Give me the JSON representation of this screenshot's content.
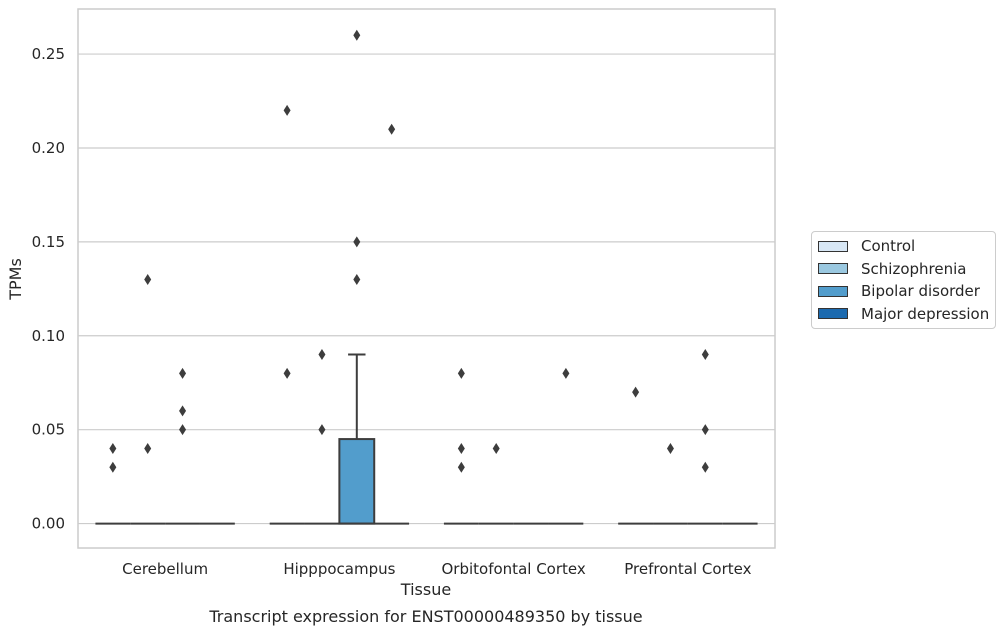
{
  "chart_data": {
    "type": "box",
    "caption": "Transcript expression for ENST00000489350 by tissue",
    "xlabel": "Tissue",
    "ylabel": "TPMs",
    "ylim": [
      -0.013,
      0.274
    ],
    "yticks": [
      0.0,
      0.05,
      0.1,
      0.15,
      0.2,
      0.25
    ],
    "ytick_labels": [
      "0.00",
      "0.05",
      "0.10",
      "0.15",
      "0.20",
      "0.25"
    ],
    "grid": "horizontal",
    "legend_position": "right",
    "categories": [
      "Cerebellum",
      "Hipppocampus",
      "Orbitofontal Cortex",
      "Prefrontal Cortex"
    ],
    "series": [
      {
        "name": "Control",
        "color": "#d8e7f5"
      },
      {
        "name": "Schizophrenia",
        "color": "#9ac8e0"
      },
      {
        "name": "Bipolar disorder",
        "color": "#529dcc"
      },
      {
        "name": "Major depression",
        "color": "#1c6aaf"
      }
    ],
    "boxes": [
      {
        "category": "Cerebellum",
        "series": "Control",
        "q1": 0,
        "median": 0,
        "q3": 0,
        "whisker_low": 0,
        "whisker_high": 0,
        "outliers": [
          0.04,
          0.03
        ]
      },
      {
        "category": "Cerebellum",
        "series": "Schizophrenia",
        "q1": 0,
        "median": 0,
        "q3": 0,
        "whisker_low": 0,
        "whisker_high": 0,
        "outliers": [
          0.13,
          0.04
        ]
      },
      {
        "category": "Cerebellum",
        "series": "Bipolar disorder",
        "q1": 0,
        "median": 0,
        "q3": 0,
        "whisker_low": 0,
        "whisker_high": 0,
        "outliers": [
          0.08,
          0.06,
          0.05
        ]
      },
      {
        "category": "Cerebellum",
        "series": "Major depression",
        "q1": 0,
        "median": 0,
        "q3": 0,
        "whisker_low": 0,
        "whisker_high": 0,
        "outliers": []
      },
      {
        "category": "Hipppocampus",
        "series": "Control",
        "q1": 0,
        "median": 0,
        "q3": 0,
        "whisker_low": 0,
        "whisker_high": 0,
        "outliers": [
          0.22,
          0.08
        ]
      },
      {
        "category": "Hipppocampus",
        "series": "Schizophrenia",
        "q1": 0,
        "median": 0,
        "q3": 0,
        "whisker_low": 0,
        "whisker_high": 0,
        "outliers": [
          0.09,
          0.05
        ]
      },
      {
        "category": "Hipppocampus",
        "series": "Bipolar disorder",
        "q1": 0,
        "median": 0,
        "q3": 0.045,
        "whisker_low": 0,
        "whisker_high": 0.09,
        "outliers": [
          0.26,
          0.15,
          0.13
        ]
      },
      {
        "category": "Hipppocampus",
        "series": "Major depression",
        "q1": 0,
        "median": 0,
        "q3": 0,
        "whisker_low": 0,
        "whisker_high": 0,
        "outliers": [
          0.21
        ]
      },
      {
        "category": "Orbitofontal Cortex",
        "series": "Control",
        "q1": 0,
        "median": 0,
        "q3": 0,
        "whisker_low": 0,
        "whisker_high": 0,
        "outliers": [
          0.08,
          0.04,
          0.03
        ]
      },
      {
        "category": "Orbitofontal Cortex",
        "series": "Schizophrenia",
        "q1": 0,
        "median": 0,
        "q3": 0,
        "whisker_low": 0,
        "whisker_high": 0,
        "outliers": [
          0.04
        ]
      },
      {
        "category": "Orbitofontal Cortex",
        "series": "Bipolar disorder",
        "q1": 0,
        "median": 0,
        "q3": 0,
        "whisker_low": 0,
        "whisker_high": 0,
        "outliers": []
      },
      {
        "category": "Orbitofontal Cortex",
        "series": "Major depression",
        "q1": 0,
        "median": 0,
        "q3": 0,
        "whisker_low": 0,
        "whisker_high": 0,
        "outliers": [
          0.08
        ]
      },
      {
        "category": "Prefrontal Cortex",
        "series": "Control",
        "q1": 0,
        "median": 0,
        "q3": 0,
        "whisker_low": 0,
        "whisker_high": 0,
        "outliers": [
          0.07
        ]
      },
      {
        "category": "Prefrontal Cortex",
        "series": "Schizophrenia",
        "q1": 0,
        "median": 0,
        "q3": 0,
        "whisker_low": 0,
        "whisker_high": 0,
        "outliers": [
          0.04
        ]
      },
      {
        "category": "Prefrontal Cortex",
        "series": "Bipolar disorder",
        "q1": 0,
        "median": 0,
        "q3": 0,
        "whisker_low": 0,
        "whisker_high": 0,
        "outliers": [
          0.09,
          0.05,
          0.03
        ]
      },
      {
        "category": "Prefrontal Cortex",
        "series": "Major depression",
        "q1": 0,
        "median": 0,
        "q3": 0,
        "whisker_low": 0,
        "whisker_high": 0,
        "outliers": []
      }
    ]
  }
}
